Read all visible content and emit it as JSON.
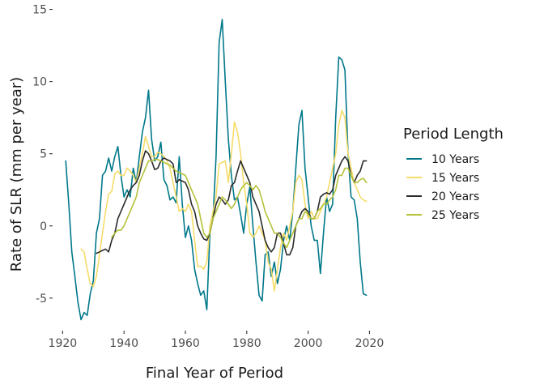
{
  "chart_data": {
    "type": "line",
    "title": "",
    "xlabel": "Final Year of Period",
    "ylabel": "Rate of SLR (mm per year)",
    "xlim": [
      1917,
      2022
    ],
    "ylim": [
      -7.2,
      15.2
    ],
    "xticks": [
      1920,
      1940,
      1960,
      1980,
      2000,
      2020
    ],
    "yticks": [
      -5,
      0,
      5,
      10,
      15
    ],
    "grid": false,
    "legend": {
      "title": "Period Length",
      "position": "right"
    },
    "series": [
      {
        "name": "10 Years",
        "color": "#00788a",
        "x": [
          1921,
          1922,
          1923,
          1924,
          1925,
          1926,
          1927,
          1928,
          1929,
          1930,
          1931,
          1932,
          1933,
          1934,
          1935,
          1936,
          1937,
          1938,
          1939,
          1940,
          1941,
          1942,
          1943,
          1944,
          1945,
          1946,
          1947,
          1948,
          1949,
          1950,
          1951,
          1952,
          1953,
          1954,
          1955,
          1956,
          1957,
          1958,
          1959,
          1960,
          1961,
          1962,
          1963,
          1964,
          1965,
          1966,
          1967,
          1968,
          1969,
          1970,
          1971,
          1972,
          1973,
          1974,
          1975,
          1976,
          1977,
          1978,
          1979,
          1980,
          1981,
          1982,
          1983,
          1984,
          1985,
          1986,
          1987,
          1988,
          1989,
          1990,
          1991,
          1992,
          1993,
          1994,
          1995,
          1996,
          1997,
          1998,
          1999,
          2000,
          2001,
          2002,
          2003,
          2004,
          2005,
          2006,
          2007,
          2008,
          2009,
          2010,
          2011,
          2012,
          2013,
          2014,
          2015,
          2016,
          2017,
          2018,
          2019
        ],
        "y": [
          4.5,
          1.5,
          -1.8,
          -3.5,
          -5.3,
          -6.5,
          -6.0,
          -6.2,
          -4.7,
          -3.8,
          -0.5,
          0.5,
          3.5,
          3.8,
          4.7,
          3.8,
          4.8,
          5.5,
          3.5,
          2.0,
          2.5,
          2.0,
          4.0,
          3.0,
          4.8,
          6.5,
          7.5,
          9.4,
          6.0,
          4.5,
          4.8,
          5.8,
          3.2,
          2.8,
          1.8,
          2.0,
          1.6,
          4.8,
          1.5,
          -0.8,
          0.0,
          -1.0,
          -3.0,
          -4.0,
          -4.8,
          -4.5,
          -5.8,
          -0.5,
          0.5,
          4.8,
          12.7,
          14.3,
          10.0,
          6.0,
          3.5,
          1.8,
          2.0,
          0.8,
          -0.5,
          1.5,
          2.7,
          0.0,
          -2.5,
          -4.8,
          -5.2,
          -2.0,
          -1.8,
          -3.5,
          -2.5,
          -4.0,
          -3.0,
          -1.0,
          0.0,
          -1.0,
          1.0,
          4.0,
          7.0,
          8.0,
          4.0,
          2.0,
          0.0,
          -1.0,
          -1.0,
          -3.3,
          -0.5,
          2.0,
          1.0,
          1.5,
          7.5,
          11.7,
          11.5,
          10.8,
          5.0,
          2.0,
          1.8,
          0.5,
          -2.5,
          -4.7,
          -4.8
        ]
      },
      {
        "name": "15 Years",
        "color": "#f5dc6a",
        "x": [
          1926,
          1927,
          1928,
          1929,
          1930,
          1931,
          1932,
          1933,
          1934,
          1935,
          1936,
          1937,
          1938,
          1939,
          1940,
          1941,
          1942,
          1943,
          1944,
          1945,
          1946,
          1947,
          1948,
          1949,
          1950,
          1951,
          1952,
          1953,
          1954,
          1955,
          1956,
          1957,
          1958,
          1959,
          1960,
          1961,
          1962,
          1963,
          1964,
          1965,
          1966,
          1967,
          1968,
          1969,
          1970,
          1971,
          1972,
          1973,
          1974,
          1975,
          1976,
          1977,
          1978,
          1979,
          1980,
          1981,
          1982,
          1983,
          1984,
          1985,
          1986,
          1987,
          1988,
          1989,
          1990,
          1991,
          1992,
          1993,
          1994,
          1995,
          1996,
          1997,
          1998,
          1999,
          2000,
          2001,
          2002,
          2003,
          2004,
          2005,
          2006,
          2007,
          2008,
          2009,
          2010,
          2011,
          2012,
          2013,
          2014,
          2015,
          2016,
          2017,
          2018,
          2019
        ],
        "y": [
          -1.6,
          -1.8,
          -3.0,
          -4.0,
          -4.2,
          -3.5,
          -2.0,
          -0.5,
          1.0,
          2.2,
          2.4,
          3.6,
          3.8,
          3.5,
          3.5,
          4.0,
          3.8,
          3.5,
          3.0,
          4.0,
          5.0,
          6.2,
          5.5,
          4.8,
          4.8,
          5.1,
          5.0,
          4.8,
          4.5,
          4.0,
          3.0,
          2.0,
          1.0,
          1.2,
          1.0,
          1.5,
          1.0,
          -1.0,
          -2.8,
          -2.8,
          -3.0,
          -2.5,
          0.0,
          1.0,
          2.0,
          4.3,
          4.4,
          4.5,
          3.0,
          5.0,
          7.2,
          6.5,
          5.0,
          3.0,
          1.5,
          -0.5,
          -0.8,
          -0.5,
          0.0,
          -0.5,
          -1.0,
          -2.5,
          -3.0,
          -4.5,
          -3.0,
          -1.5,
          -0.5,
          -1.0,
          0.0,
          1.0,
          3.0,
          3.5,
          3.2,
          1.5,
          0.5,
          1.0,
          0.5,
          0.5,
          1.0,
          1.5,
          2.0,
          3.0,
          4.0,
          5.0,
          7.0,
          8.0,
          7.5,
          5.0,
          4.0,
          3.0,
          2.5,
          2.0,
          1.8,
          1.7
        ]
      },
      {
        "name": "20 Years",
        "color": "#2b2b2b",
        "x": [
          1931,
          1932,
          1933,
          1934,
          1935,
          1936,
          1937,
          1938,
          1939,
          1940,
          1941,
          1942,
          1943,
          1944,
          1945,
          1946,
          1947,
          1948,
          1949,
          1950,
          1951,
          1952,
          1953,
          1954,
          1955,
          1956,
          1957,
          1958,
          1959,
          1960,
          1961,
          1962,
          1963,
          1964,
          1965,
          1966,
          1967,
          1968,
          1969,
          1970,
          1971,
          1972,
          1973,
          1974,
          1975,
          1976,
          1977,
          1978,
          1979,
          1980,
          1981,
          1982,
          1983,
          1984,
          1985,
          1986,
          1987,
          1988,
          1989,
          1990,
          1991,
          1992,
          1993,
          1994,
          1995,
          1996,
          1997,
          1998,
          1999,
          2000,
          2001,
          2002,
          2003,
          2004,
          2005,
          2006,
          2007,
          2008,
          2009,
          2010,
          2011,
          2012,
          2013,
          2014,
          2015,
          2016,
          2017,
          2018,
          2019
        ],
        "y": [
          -1.9,
          -1.8,
          -1.7,
          -1.6,
          -1.8,
          -1.0,
          -0.5,
          0.5,
          1.0,
          1.5,
          2.0,
          2.5,
          2.8,
          3.0,
          3.5,
          4.5,
          5.2,
          5.0,
          4.5,
          3.9,
          4.0,
          4.5,
          4.7,
          4.6,
          4.5,
          4.3,
          3.0,
          3.2,
          3.1,
          3.0,
          2.5,
          1.5,
          1.0,
          0.0,
          -0.5,
          -0.9,
          -1.0,
          -0.5,
          0.5,
          1.5,
          2.0,
          1.8,
          1.5,
          1.8,
          2.8,
          3.0,
          3.8,
          4.5,
          4.0,
          3.5,
          3.0,
          2.0,
          1.5,
          1.0,
          0.0,
          -1.0,
          -1.5,
          -1.8,
          -1.5,
          -0.5,
          -0.5,
          -1.2,
          -2.0,
          -2.0,
          -1.5,
          0.0,
          0.5,
          1.0,
          1.2,
          1.0,
          0.5,
          0.5,
          1.0,
          2.0,
          2.2,
          2.3,
          2.2,
          2.5,
          3.5,
          4.0,
          4.5,
          4.8,
          4.5,
          3.5,
          3.0,
          3.5,
          3.8,
          4.5,
          4.5
        ]
      },
      {
        "name": "25 Years",
        "color": "#b5c23a",
        "x": [
          1936,
          1937,
          1938,
          1939,
          1940,
          1941,
          1942,
          1943,
          1944,
          1945,
          1946,
          1947,
          1948,
          1949,
          1950,
          1951,
          1952,
          1953,
          1954,
          1955,
          1956,
          1957,
          1958,
          1959,
          1960,
          1961,
          1962,
          1963,
          1964,
          1965,
          1966,
          1967,
          1968,
          1969,
          1970,
          1971,
          1972,
          1973,
          1974,
          1975,
          1976,
          1977,
          1978,
          1979,
          1980,
          1981,
          1982,
          1983,
          1984,
          1985,
          1986,
          1987,
          1988,
          1989,
          1990,
          1991,
          1992,
          1993,
          1994,
          1995,
          1996,
          1997,
          1998,
          1999,
          2000,
          2001,
          2002,
          2003,
          2004,
          2005,
          2006,
          2007,
          2008,
          2009,
          2010,
          2011,
          2012,
          2013,
          2014,
          2015,
          2016,
          2017,
          2018,
          2019
        ],
        "y": [
          -0.8,
          -0.5,
          -0.3,
          -0.3,
          0.0,
          0.5,
          1.0,
          1.5,
          2.0,
          3.0,
          3.5,
          4.0,
          4.5,
          4.5,
          4.6,
          4.6,
          4.5,
          4.4,
          4.3,
          4.2,
          4.0,
          3.8,
          3.7,
          3.6,
          3.5,
          3.0,
          2.5,
          2.0,
          1.5,
          0.5,
          -0.5,
          -0.8,
          -0.5,
          0.5,
          1.0,
          1.5,
          2.0,
          1.8,
          1.5,
          1.2,
          1.5,
          2.0,
          2.5,
          2.8,
          3.0,
          2.8,
          2.5,
          2.8,
          2.5,
          1.8,
          1.0,
          0.5,
          0.0,
          -0.5,
          -0.5,
          -0.8,
          -1.2,
          -1.5,
          -1.0,
          -0.5,
          0.0,
          0.5,
          0.5,
          1.0,
          0.8,
          0.5,
          0.5,
          1.0,
          1.2,
          1.5,
          1.5,
          1.8,
          2.0,
          2.5,
          3.5,
          3.5,
          4.0,
          4.0,
          3.5,
          3.0,
          3.0,
          3.2,
          3.3,
          3.0
        ]
      }
    ]
  }
}
